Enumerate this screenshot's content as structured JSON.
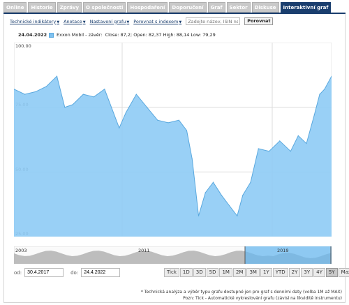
{
  "tabs": [
    {
      "label": "Online",
      "active": false
    },
    {
      "label": "Historie",
      "active": false
    },
    {
      "label": "Zprávy",
      "active": false
    },
    {
      "label": "O společnosti",
      "active": false
    },
    {
      "label": "Hospodaření",
      "active": false
    },
    {
      "label": "Doporučení",
      "active": false
    },
    {
      "label": "Graf",
      "active": false
    },
    {
      "label": "Sektor",
      "active": false
    },
    {
      "label": "Diskuse",
      "active": false
    },
    {
      "label": "Interaktivní graf",
      "active": true
    }
  ],
  "toolbar": {
    "technical": "Technické indikátory",
    "annotations": "Anotace",
    "settings": "Nastavení grafu",
    "compare_index": "Porovnat s indexem",
    "search_placeholder": "Zadejte název, ISIN nebo",
    "compare_button": "Porovnat"
  },
  "chart": {
    "date": "24.04.2022",
    "series_name": "Exxon Mobil - závěr:",
    "ohlc": "Close: 87,2; Open: 82,37 High: 88,14 Low: 79,29",
    "y_ticks": [
      "100.00",
      "75.00",
      "50.00",
      "25.00"
    ],
    "navigator_labels": [
      "2003",
      "2011",
      "2019"
    ],
    "colors": {
      "fill": "#8ecbf5",
      "line": "#5aa8de",
      "grid": "#dcdcdc",
      "nav_fill": "#bdbdbd",
      "nav_sel": "#6ab8ef"
    }
  },
  "chart_data": {
    "type": "area",
    "title": "Exxon Mobil - závěr",
    "ylim": [
      25,
      100
    ],
    "x": [
      "2017-04-30",
      "2017-07-01",
      "2017-09-01",
      "2017-11-01",
      "2018-01-01",
      "2018-02-15",
      "2018-04-01",
      "2018-06-01",
      "2018-08-01",
      "2018-10-01",
      "2018-12-24",
      "2019-02-01",
      "2019-04-01",
      "2019-06-01",
      "2019-08-01",
      "2019-10-01",
      "2019-12-01",
      "2020-01-15",
      "2020-02-15",
      "2020-03-23",
      "2020-05-01",
      "2020-06-15",
      "2020-08-01",
      "2020-09-15",
      "2020-10-30",
      "2020-12-01",
      "2021-01-15",
      "2021-03-01",
      "2021-05-01",
      "2021-07-01",
      "2021-09-01",
      "2021-10-15",
      "2021-12-01",
      "2022-01-15",
      "2022-02-15",
      "2022-03-15",
      "2022-04-24"
    ],
    "values": [
      82,
      80,
      81,
      83,
      87,
      75,
      76,
      80,
      79,
      82,
      67,
      73,
      80,
      75,
      70,
      69,
      70,
      66,
      55,
      33,
      42,
      46,
      41,
      37,
      33,
      41,
      46,
      59,
      58,
      62,
      58,
      64,
      61,
      72,
      80,
      82,
      87
    ]
  },
  "dates": {
    "from_label": "od:",
    "from": "30.4.2017",
    "to_label": "do:",
    "to": "24.4.2022"
  },
  "ranges": [
    {
      "label": "Tick",
      "selected": false
    },
    {
      "label": "1D",
      "selected": false
    },
    {
      "label": "3D",
      "selected": false
    },
    {
      "label": "5D",
      "selected": false
    },
    {
      "label": "1M",
      "selected": false
    },
    {
      "label": "2M",
      "selected": false
    },
    {
      "label": "3M",
      "selected": false
    },
    {
      "label": "1Y",
      "selected": false
    },
    {
      "label": "YTD",
      "selected": false
    },
    {
      "label": "2Y",
      "selected": false
    },
    {
      "label": "3Y",
      "selected": false
    },
    {
      "label": "4Y",
      "selected": false
    },
    {
      "label": "5Y",
      "selected": true
    },
    {
      "label": "Max",
      "selected": false
    }
  ],
  "footnotes": [
    "* Technická analýza a výběr typu grafu dostupné jen pro graf s denními daty (volba 1M až MAX)",
    "Pozn: Tick - Automatické vykreslování grafu (závisí na likviditě instrumentu)"
  ]
}
